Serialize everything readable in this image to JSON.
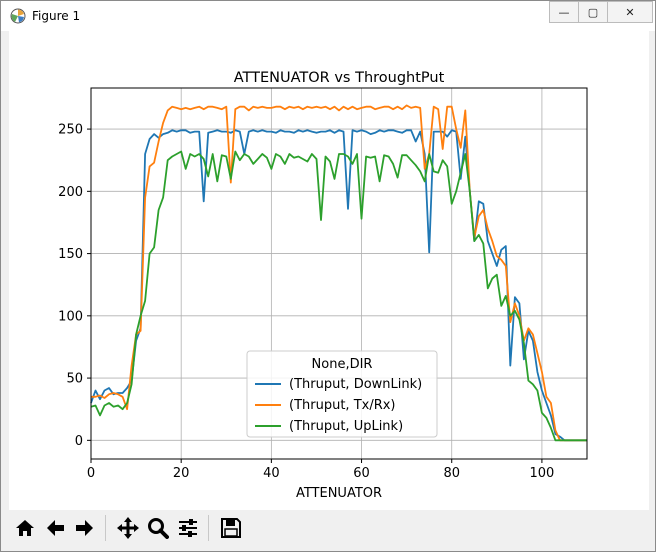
{
  "window": {
    "title": "Figure 1",
    "buttons": {
      "minimize": "—",
      "maximize": "▢",
      "close": "✕"
    }
  },
  "toolbar": {
    "tools": [
      {
        "name": "home-icon"
      },
      {
        "name": "back-arrow-icon"
      },
      {
        "name": "forward-arrow-icon"
      },
      {
        "name": "pan-icon"
      },
      {
        "name": "zoom-icon"
      },
      {
        "name": "configure-subplots-icon"
      },
      {
        "name": "save-icon"
      }
    ]
  },
  "chart_data": {
    "type": "line",
    "title": "ATTENUATOR vs ThroughtPut",
    "xlabel": "ATTENUATOR",
    "ylabel": "",
    "xlim": [
      0,
      110
    ],
    "ylim": [
      -15,
      283
    ],
    "xticks": [
      0,
      20,
      40,
      60,
      80,
      100
    ],
    "yticks": [
      0,
      50,
      100,
      150,
      200,
      250
    ],
    "grid": true,
    "legend": {
      "title": "None,DIR",
      "placement": "lower-center"
    },
    "series": [
      {
        "name": "(Thruput, DownLink)",
        "color": "#1f77b4",
        "x": [
          0,
          1,
          2,
          3,
          4,
          5,
          6,
          7,
          8,
          9,
          10,
          11,
          12,
          13,
          14,
          15,
          16,
          17,
          18,
          19,
          20,
          21,
          22,
          23,
          24,
          25,
          26,
          27,
          28,
          29,
          30,
          31,
          32,
          33,
          34,
          35,
          36,
          37,
          38,
          39,
          40,
          41,
          42,
          43,
          44,
          45,
          46,
          47,
          48,
          49,
          50,
          51,
          52,
          53,
          54,
          55,
          56,
          57,
          58,
          59,
          60,
          61,
          62,
          63,
          64,
          65,
          66,
          67,
          68,
          69,
          70,
          71,
          72,
          73,
          74,
          75,
          76,
          77,
          78,
          79,
          80,
          81,
          82,
          83,
          84,
          85,
          86,
          87,
          88,
          89,
          90,
          91,
          92,
          93,
          94,
          95,
          96,
          97,
          98,
          99,
          100,
          101,
          102,
          103,
          104,
          105,
          106,
          107,
          108,
          109,
          110
        ],
        "values": [
          30,
          40,
          33,
          40,
          42,
          37,
          38,
          38,
          42,
          48,
          80,
          90,
          230,
          242,
          246,
          243,
          246,
          247,
          249,
          248,
          249,
          249,
          247,
          248,
          248,
          192,
          247,
          248,
          249,
          248,
          248,
          247,
          249,
          248,
          230,
          248,
          249,
          248,
          249,
          248,
          248,
          247,
          249,
          248,
          248,
          247,
          249,
          248,
          249,
          248,
          247,
          248,
          248,
          249,
          247,
          249,
          248,
          186,
          249,
          248,
          249,
          248,
          246,
          247,
          249,
          248,
          249,
          249,
          248,
          247,
          249,
          249,
          240,
          248,
          230,
          151,
          248,
          248,
          248,
          244,
          249,
          248,
          210,
          244,
          200,
          160,
          192,
          190,
          160,
          150,
          140,
          153,
          156,
          60,
          115,
          110,
          65,
          88,
          80,
          55,
          40,
          30,
          20,
          5,
          3,
          0,
          0,
          0,
          0,
          0,
          0
        ]
      },
      {
        "name": "(Thruput, Tx/Rx)",
        "color": "#ff7f0e",
        "x": [
          0,
          1,
          2,
          3,
          4,
          5,
          6,
          7,
          8,
          9,
          10,
          11,
          12,
          13,
          14,
          15,
          16,
          17,
          18,
          19,
          20,
          21,
          22,
          23,
          24,
          25,
          26,
          27,
          28,
          29,
          30,
          31,
          32,
          33,
          34,
          35,
          36,
          37,
          38,
          39,
          40,
          41,
          42,
          43,
          44,
          45,
          46,
          47,
          48,
          49,
          50,
          51,
          52,
          53,
          54,
          55,
          56,
          57,
          58,
          59,
          60,
          61,
          62,
          63,
          64,
          65,
          66,
          67,
          68,
          69,
          70,
          71,
          72,
          73,
          74,
          75,
          76,
          77,
          78,
          79,
          80,
          81,
          82,
          83,
          84,
          85,
          86,
          87,
          88,
          89,
          90,
          91,
          92,
          93,
          94,
          95,
          96,
          97,
          98,
          99,
          100,
          101,
          102,
          103,
          104,
          105,
          106,
          107,
          108,
          109,
          110
        ],
        "values": [
          35,
          35,
          36,
          34,
          37,
          38,
          37,
          35,
          25,
          60,
          85,
          88,
          195,
          220,
          223,
          240,
          255,
          265,
          268,
          267,
          266,
          267,
          266,
          267,
          268,
          266,
          268,
          268,
          267,
          266,
          268,
          207,
          266,
          268,
          268,
          265,
          268,
          267,
          268,
          267,
          267,
          268,
          268,
          266,
          268,
          267,
          268,
          266,
          268,
          267,
          268,
          267,
          268,
          266,
          268,
          265,
          268,
          266,
          268,
          266,
          267,
          268,
          268,
          266,
          267,
          268,
          268,
          266,
          268,
          266,
          269,
          267,
          268,
          267,
          218,
          230,
          268,
          266,
          234,
          268,
          268,
          250,
          235,
          265,
          200,
          163,
          180,
          185,
          170,
          160,
          148,
          145,
          140,
          95,
          110,
          100,
          80,
          90,
          85,
          70,
          55,
          35,
          30,
          8,
          0,
          0,
          0,
          0,
          0,
          0,
          0
        ]
      },
      {
        "name": "(Thruput, UpLink)",
        "color": "#2ca02c",
        "x": [
          0,
          1,
          2,
          3,
          4,
          5,
          6,
          7,
          8,
          9,
          10,
          11,
          12,
          13,
          14,
          15,
          16,
          17,
          18,
          19,
          20,
          21,
          22,
          23,
          24,
          25,
          26,
          27,
          28,
          29,
          30,
          31,
          32,
          33,
          34,
          35,
          36,
          37,
          38,
          39,
          40,
          41,
          42,
          43,
          44,
          45,
          46,
          47,
          48,
          49,
          50,
          51,
          52,
          53,
          54,
          55,
          56,
          57,
          58,
          59,
          60,
          61,
          62,
          63,
          64,
          65,
          66,
          67,
          68,
          69,
          70,
          71,
          72,
          73,
          74,
          75,
          76,
          77,
          78,
          79,
          80,
          81,
          82,
          83,
          84,
          85,
          86,
          87,
          88,
          89,
          90,
          91,
          92,
          93,
          94,
          95,
          96,
          97,
          98,
          99,
          100,
          101,
          102,
          103,
          104,
          105,
          106,
          107,
          108,
          109,
          110
        ],
        "values": [
          27,
          28,
          20,
          28,
          30,
          27,
          28,
          25,
          30,
          45,
          85,
          100,
          112,
          150,
          155,
          185,
          195,
          225,
          228,
          230,
          232,
          218,
          230,
          228,
          230,
          226,
          212,
          230,
          208,
          229,
          228,
          210,
          232,
          225,
          230,
          228,
          222,
          226,
          230,
          227,
          218,
          230,
          228,
          222,
          230,
          227,
          228,
          226,
          224,
          230,
          226,
          177,
          228,
          224,
          210,
          230,
          230,
          228,
          222,
          230,
          178,
          228,
          227,
          228,
          208,
          229,
          228,
          222,
          211,
          229,
          229,
          225,
          221,
          216,
          208,
          230,
          216,
          215,
          225,
          220,
          190,
          200,
          215,
          230,
          200,
          160,
          165,
          158,
          122,
          130,
          133,
          108,
          116,
          100,
          104,
          97,
          78,
          48,
          45,
          40,
          22,
          18,
          10,
          0,
          0,
          0,
          0,
          0,
          0,
          0,
          0
        ]
      }
    ]
  }
}
